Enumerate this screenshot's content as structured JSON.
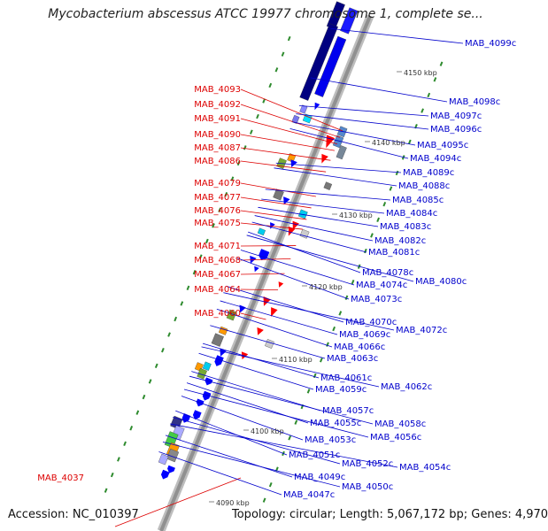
{
  "title": "Mycobacterium abscessus ATCC 19977 chromosome 1, complete se...",
  "footer": {
    "accession": "Accession: NC_010397",
    "topology": "Topology: circular; Length: 5,067,172 bp; Genes: 4,970"
  },
  "colors": {
    "forward": "#ff0000",
    "reverse": "#0000ff",
    "backbone": "#909090",
    "gc_dots": "#2e8b2e"
  },
  "kbp_ticks": [
    {
      "label": "4150 kbp"
    },
    {
      "label": "4140 kbp"
    },
    {
      "label": "4130 kbp"
    },
    {
      "label": "4120 kbp"
    },
    {
      "label": "4110 kbp"
    },
    {
      "label": "4100 kbp"
    },
    {
      "label": "4090 kbp"
    }
  ],
  "genes_left": [
    "MAB_4093",
    "MAB_4092",
    "MAB_4091",
    "MAB_4090",
    "MAB_4087",
    "MAB_4086",
    "MAB_4079",
    "MAB_4077",
    "MAB_4076",
    "MAB_4075",
    "MAB_4071",
    "MAB_4068",
    "MAB_4067",
    "MAB_4064",
    "MAB_4060",
    "MAB_4037"
  ],
  "genes_right": [
    "MAB_4099c",
    "MAB_4098c",
    "MAB_4097c",
    "MAB_4096c",
    "MAB_4095c",
    "MAB_4094c",
    "MAB_4089c",
    "MAB_4088c",
    "MAB_4085c",
    "MAB_4084c",
    "MAB_4083c",
    "MAB_4082c",
    "MAB_4081c",
    "MAB_4078c",
    "MAB_4080c",
    "MAB_4074c",
    "MAB_4073c",
    "MAB_4070c",
    "MAB_4072c",
    "MAB_4069c",
    "MAB_4066c",
    "MAB_4063c",
    "MAB_4061c",
    "MAB_4062c",
    "MAB_4059c",
    "MAB_4057c",
    "MAB_4058c",
    "MAB_4055c",
    "MAB_4056c",
    "MAB_4053c",
    "MAB_4051c",
    "MAB_4052c",
    "MAB_4054c",
    "MAB_4049c",
    "MAB_4050c",
    "MAB_4047c"
  ]
}
